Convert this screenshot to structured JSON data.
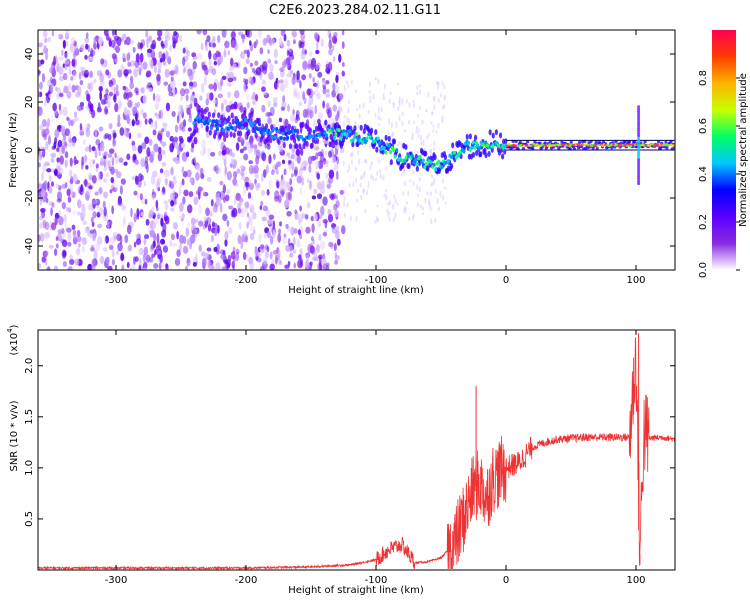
{
  "chart_data": [
    {
      "type": "heatmap",
      "title": "C2E6.2023.284.02.11.G11",
      "xlabel": "Height of straight line (km)",
      "ylabel": "Frequency (Hz)",
      "xlim": [
        -360,
        130
      ],
      "ylim": [
        -50,
        50
      ],
      "x_ticks": [
        -300,
        -200,
        -100,
        0,
        100
      ],
      "y_ticks": [
        -40,
        -20,
        0,
        20,
        40
      ],
      "colorbar": {
        "label": "Normalized spectral amplitude",
        "range": [
          0,
          1
        ],
        "ticks": [
          "0.0",
          "0.2",
          "0.4",
          "0.6",
          "0.8"
        ],
        "colors": [
          "#ffffff",
          "#8a2be2",
          "#5a00ff",
          "#0000ff",
          "#00c8ff",
          "#00ff64",
          "#c8ff00",
          "#ffb400",
          "#ff3c00",
          "#ff0050"
        ]
      },
      "ridge": [
        {
          "x": -240,
          "y": 12
        },
        {
          "x": -220,
          "y": 10
        },
        {
          "x": -200,
          "y": 11
        },
        {
          "x": -180,
          "y": 7
        },
        {
          "x": -160,
          "y": 6
        },
        {
          "x": -140,
          "y": 7
        },
        {
          "x": -120,
          "y": 6
        },
        {
          "x": -100,
          "y": 4
        },
        {
          "x": -90,
          "y": 0
        },
        {
          "x": -80,
          "y": -3
        },
        {
          "x": -70,
          "y": -4
        },
        {
          "x": -60,
          "y": -6
        },
        {
          "x": -50,
          "y": -7
        },
        {
          "x": -40,
          "y": -2
        },
        {
          "x": -30,
          "y": 2
        },
        {
          "x": -20,
          "y": 1
        },
        {
          "x": -10,
          "y": 3
        },
        {
          "x": 0,
          "y": 2
        },
        {
          "x": 20,
          "y": 2
        },
        {
          "x": 50,
          "y": 2
        },
        {
          "x": 80,
          "y": 2
        },
        {
          "x": 100,
          "y": 2
        },
        {
          "x": 130,
          "y": 2
        }
      ]
    },
    {
      "type": "line",
      "xlabel": "Height of straight line (km)",
      "ylabel": "SNR (10 * v/v)",
      "y_multiplier_label": "(x10",
      "y_multiplier_exp": "4",
      "xlim": [
        -360,
        130
      ],
      "ylim": [
        0,
        2.35
      ],
      "x_ticks": [
        -300,
        -200,
        -100,
        0,
        100
      ],
      "y_ticks": [
        0.5,
        1.0,
        1.5,
        2.0
      ],
      "y_tick_labels": [
        "0.5",
        "1.0",
        "1.5",
        "2.0"
      ],
      "color": "#ee3333",
      "series": [
        {
          "x": [
            -360,
            -300,
            -200,
            -150,
            -120,
            -100,
            -90,
            -80,
            -70,
            -60,
            -50,
            -40,
            -30,
            -25,
            -20,
            -15,
            -10,
            -5,
            0,
            10,
            20,
            30,
            40,
            60,
            80,
            95,
            100,
            103,
            106,
            110,
            120,
            130
          ],
          "y": [
            0.02,
            0.02,
            0.02,
            0.03,
            0.05,
            0.1,
            0.2,
            0.25,
            0.07,
            0.08,
            0.12,
            0.25,
            0.6,
            0.8,
            0.85,
            0.7,
            0.9,
            0.95,
            1.0,
            1.05,
            1.2,
            1.25,
            1.28,
            1.3,
            1.3,
            1.3,
            2.1,
            0.15,
            1.35,
            1.29,
            1.3,
            1.28
          ]
        }
      ],
      "spikes": [
        {
          "x": -23,
          "y": 1.8
        },
        {
          "x": 102,
          "y": 2.32
        },
        {
          "x": 103,
          "y": 0.05
        }
      ]
    }
  ]
}
